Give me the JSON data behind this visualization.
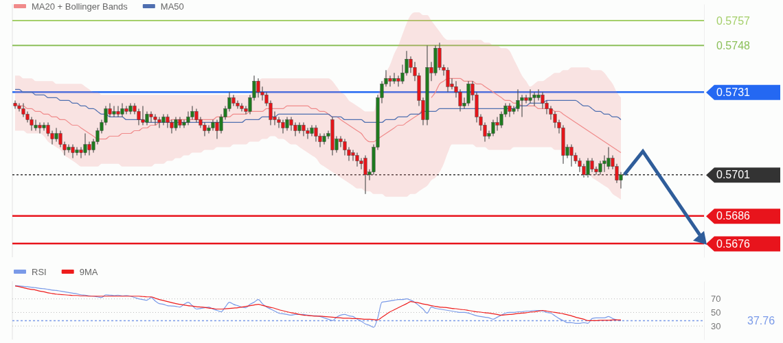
{
  "chart_data": [
    {
      "type": "candlestick",
      "legend": "top left",
      "tick_labels": "y",
      "ylim": [
        0.5671,
        0.5763
      ],
      "yticks": [
        0.5757,
        0.5748,
        0.5731,
        0.5701,
        0.5686,
        0.5676
      ],
      "categories": [
        null,
        null,
        null,
        null,
        null,
        null,
        null,
        null,
        null,
        null,
        null,
        null,
        null,
        null,
        null,
        null,
        null,
        null,
        null,
        null,
        null,
        null,
        null,
        null,
        null,
        null,
        null,
        null,
        null,
        null,
        null,
        null,
        null,
        null,
        null,
        null,
        null,
        null,
        null,
        null,
        null,
        null,
        null,
        null,
        null,
        null,
        null,
        null,
        null,
        null,
        null,
        null,
        null,
        null,
        null,
        null,
        null,
        null,
        null,
        null,
        null,
        null,
        null,
        null,
        null,
        null,
        null,
        null,
        null,
        null,
        null,
        null,
        null,
        null,
        null,
        null,
        null,
        null,
        null,
        null,
        null,
        null,
        null,
        null,
        null,
        null,
        null,
        null,
        null,
        null,
        null,
        null,
        null,
        null,
        null,
        null,
        null,
        null,
        null,
        null,
        null,
        null,
        null,
        null,
        null,
        null,
        null,
        null,
        null,
        null,
        null,
        null,
        null,
        null,
        null,
        null,
        null,
        null,
        null,
        null,
        null,
        null,
        null,
        null,
        null,
        null,
        null,
        null,
        null,
        null,
        null,
        null,
        null,
        null,
        null,
        null,
        null,
        null,
        null,
        null,
        null,
        null,
        null,
        null,
        null,
        null,
        null,
        null
      ],
      "ohlc": [
        [
          0.5727,
          0.5728,
          0.5725,
          0.5726
        ],
        [
          0.5726,
          0.5727,
          0.5724,
          0.5725
        ],
        [
          0.5725,
          0.5727,
          0.5722,
          0.5723
        ],
        [
          0.5723,
          0.5724,
          0.572,
          0.5721
        ],
        [
          0.5721,
          0.5722,
          0.5717,
          0.5719
        ],
        [
          0.5718,
          0.5721,
          0.5717,
          0.5719
        ],
        [
          0.5719,
          0.572,
          0.5716,
          0.5718
        ],
        [
          0.5718,
          0.572,
          0.5717,
          0.5719
        ],
        [
          0.5719,
          0.572,
          0.5715,
          0.5716
        ],
        [
          0.5716,
          0.5717,
          0.5712,
          0.5714
        ],
        [
          0.5714,
          0.5718,
          0.5713,
          0.5716
        ],
        [
          0.5716,
          0.5717,
          0.5711,
          0.5712
        ],
        [
          0.5712,
          0.5713,
          0.5708,
          0.571
        ],
        [
          0.571,
          0.5712,
          0.5709,
          0.5711
        ],
        [
          0.5711,
          0.5712,
          0.5707,
          0.5709
        ],
        [
          0.5709,
          0.5711,
          0.5708,
          0.571
        ],
        [
          0.571,
          0.5711,
          0.5707,
          0.5709
        ],
        [
          0.5709,
          0.5716,
          0.5708,
          0.5712
        ],
        [
          0.5712,
          0.5713,
          0.5708,
          0.571
        ],
        [
          0.571,
          0.5714,
          0.5709,
          0.5713
        ],
        [
          0.5713,
          0.5718,
          0.5712,
          0.5717
        ],
        [
          0.5717,
          0.5721,
          0.5716,
          0.572
        ],
        [
          0.572,
          0.5726,
          0.5719,
          0.5725
        ],
        [
          0.5725,
          0.5727,
          0.5722,
          0.5723
        ],
        [
          0.5723,
          0.5726,
          0.5722,
          0.5724
        ],
        [
          0.5724,
          0.5726,
          0.5722,
          0.5723
        ],
        [
          0.5723,
          0.5727,
          0.5722,
          0.5725
        ],
        [
          0.5725,
          0.5726,
          0.5723,
          0.5724
        ],
        [
          0.5724,
          0.5727,
          0.5723,
          0.5726
        ],
        [
          0.5726,
          0.5727,
          0.5723,
          0.5724
        ],
        [
          0.5724,
          0.5725,
          0.5719,
          0.5721
        ],
        [
          0.5721,
          0.5726,
          0.5719,
          0.572
        ],
        [
          0.572,
          0.5724,
          0.5719,
          0.5723
        ],
        [
          0.5723,
          0.5724,
          0.572,
          0.5722
        ],
        [
          0.5722,
          0.5723,
          0.5719,
          0.5721
        ],
        [
          0.5721,
          0.5722,
          0.5718,
          0.572
        ],
        [
          0.572,
          0.5723,
          0.5719,
          0.5722
        ],
        [
          0.5722,
          0.5723,
          0.5718,
          0.572
        ],
        [
          0.572,
          0.5721,
          0.5716,
          0.5718
        ],
        [
          0.5718,
          0.5722,
          0.5717,
          0.5721
        ],
        [
          0.5721,
          0.5722,
          0.5718,
          0.5719
        ],
        [
          0.5719,
          0.5721,
          0.5718,
          0.572
        ],
        [
          0.572,
          0.5724,
          0.5719,
          0.5722
        ],
        [
          0.5722,
          0.5726,
          0.5721,
          0.5724
        ],
        [
          0.5724,
          0.5725,
          0.572,
          0.5721
        ],
        [
          0.5721,
          0.5722,
          0.5718,
          0.5719
        ],
        [
          0.5719,
          0.572,
          0.5715,
          0.5717
        ],
        [
          0.5717,
          0.5719,
          0.5716,
          0.5718
        ],
        [
          0.5718,
          0.5721,
          0.5717,
          0.572
        ],
        [
          0.572,
          0.5721,
          0.5714,
          0.5717
        ],
        [
          0.5717,
          0.5723,
          0.5716,
          0.5722
        ],
        [
          0.5722,
          0.5726,
          0.5721,
          0.5725
        ],
        [
          0.5725,
          0.5731,
          0.5724,
          0.5729
        ],
        [
          0.5729,
          0.573,
          0.5726,
          0.5727
        ],
        [
          0.5727,
          0.5728,
          0.5725,
          0.5726
        ],
        [
          0.5726,
          0.5727,
          0.5724,
          0.5725
        ],
        [
          0.5725,
          0.5726,
          0.5723,
          0.5724
        ],
        [
          0.5724,
          0.573,
          0.5723,
          0.5729
        ],
        [
          0.5729,
          0.5737,
          0.5728,
          0.5735
        ],
        [
          0.5735,
          0.5736,
          0.5729,
          0.5731
        ],
        [
          0.5731,
          0.5733,
          0.5728,
          0.573
        ],
        [
          0.573,
          0.5731,
          0.5726,
          0.5727
        ],
        [
          0.5727,
          0.5728,
          0.5719,
          0.5721
        ],
        [
          0.5722,
          0.5724,
          0.5719,
          0.5721
        ],
        [
          0.5721,
          0.5722,
          0.5718,
          0.572
        ],
        [
          0.572,
          0.5721,
          0.5716,
          0.5718
        ],
        [
          0.5718,
          0.5722,
          0.5717,
          0.5721
        ],
        [
          0.5721,
          0.5722,
          0.5717,
          0.5719
        ],
        [
          0.5719,
          0.572,
          0.5715,
          0.5717
        ],
        [
          0.5717,
          0.572,
          0.5716,
          0.5719
        ],
        [
          0.5719,
          0.572,
          0.5715,
          0.5717
        ],
        [
          0.5717,
          0.5718,
          0.5714,
          0.5716
        ],
        [
          0.5716,
          0.5719,
          0.5715,
          0.5718
        ],
        [
          0.5718,
          0.5719,
          0.5713,
          0.5715
        ],
        [
          0.5715,
          0.5716,
          0.5711,
          0.5713
        ],
        [
          0.5713,
          0.5716,
          0.5712,
          0.5715
        ],
        [
          0.5715,
          0.5717,
          0.5714,
          0.5716
        ],
        [
          0.5721,
          0.5722,
          0.5708,
          0.571
        ],
        [
          0.571,
          0.5715,
          0.5709,
          0.5714
        ],
        [
          0.5714,
          0.5715,
          0.5711,
          0.5713
        ],
        [
          0.5713,
          0.5714,
          0.5708,
          0.571
        ],
        [
          0.571,
          0.5711,
          0.5706,
          0.5708
        ],
        [
          0.5709,
          0.571,
          0.5706,
          0.5708
        ],
        [
          0.5708,
          0.5709,
          0.5704,
          0.5706
        ],
        [
          0.5706,
          0.5707,
          0.5703,
          0.5705
        ],
        [
          0.5707,
          0.5708,
          0.5694,
          0.5701
        ],
        [
          0.5701,
          0.5703,
          0.5699,
          0.5702
        ],
        [
          0.5702,
          0.5712,
          0.5701,
          0.5711
        ],
        [
          0.5711,
          0.573,
          0.571,
          0.5729
        ],
        [
          0.5729,
          0.5735,
          0.5727,
          0.5734
        ],
        [
          0.5734,
          0.5739,
          0.5733,
          0.5736
        ],
        [
          0.5736,
          0.5737,
          0.5733,
          0.5735
        ],
        [
          0.5735,
          0.5738,
          0.5734,
          0.5736
        ],
        [
          0.5736,
          0.5737,
          0.5733,
          0.5735
        ],
        [
          0.5735,
          0.5741,
          0.5734,
          0.5738
        ],
        [
          0.5738,
          0.5746,
          0.5737,
          0.5743
        ],
        [
          0.5743,
          0.5744,
          0.5738,
          0.574
        ],
        [
          0.574,
          0.5742,
          0.5735,
          0.5737
        ],
        [
          0.5737,
          0.5738,
          0.5726,
          0.5728
        ],
        [
          0.5728,
          0.5729,
          0.5719,
          0.5721
        ],
        [
          0.5721,
          0.5748,
          0.5719,
          0.574
        ],
        [
          0.574,
          0.5742,
          0.5735,
          0.5738
        ],
        [
          0.5738,
          0.5748,
          0.5737,
          0.5747
        ],
        [
          0.5747,
          0.5749,
          0.5739,
          0.574
        ],
        [
          0.574,
          0.5741,
          0.5737,
          0.5739
        ],
        [
          0.5739,
          0.574,
          0.5731,
          0.5733
        ],
        [
          0.5734,
          0.5736,
          0.5732,
          0.5733
        ],
        [
          0.5733,
          0.5735,
          0.5729,
          0.5731
        ],
        [
          0.5731,
          0.5732,
          0.5724,
          0.5726
        ],
        [
          0.5726,
          0.5729,
          0.5725,
          0.5727
        ],
        [
          0.5727,
          0.5735,
          0.5726,
          0.5734
        ],
        [
          0.5734,
          0.5735,
          0.5728,
          0.573
        ],
        [
          0.573,
          0.5731,
          0.572,
          0.5722
        ],
        [
          0.5722,
          0.5723,
          0.5717,
          0.5719
        ],
        [
          0.5719,
          0.572,
          0.5713,
          0.5715
        ],
        [
          0.5715,
          0.5717,
          0.5714,
          0.5716
        ],
        [
          0.5716,
          0.5721,
          0.5715,
          0.572
        ],
        [
          0.572,
          0.5722,
          0.5717,
          0.5719
        ],
        [
          0.5719,
          0.5724,
          0.5718,
          0.5723
        ],
        [
          0.5723,
          0.5727,
          0.5722,
          0.5726
        ],
        [
          0.5726,
          0.5727,
          0.5722,
          0.5724
        ],
        [
          0.5724,
          0.5726,
          0.5723,
          0.5725
        ],
        [
          0.5725,
          0.5732,
          0.5724,
          0.5728
        ],
        [
          0.5728,
          0.573,
          0.5722,
          0.5729
        ],
        [
          0.5729,
          0.573,
          0.5727,
          0.5728
        ],
        [
          0.5728,
          0.5732,
          0.5727,
          0.5729
        ],
        [
          0.5729,
          0.5731,
          0.5726,
          0.573
        ],
        [
          0.5729,
          0.5732,
          0.5728,
          0.573
        ],
        [
          0.573,
          0.5731,
          0.5725,
          0.5727
        ],
        [
          0.5727,
          0.5728,
          0.5723,
          0.5725
        ],
        [
          0.5725,
          0.5726,
          0.5721,
          0.5723
        ],
        [
          0.5723,
          0.5724,
          0.5718,
          0.572
        ],
        [
          0.572,
          0.5721,
          0.5716,
          0.5718
        ],
        [
          0.5718,
          0.5719,
          0.5705,
          0.5708
        ],
        [
          0.5708,
          0.5712,
          0.5707,
          0.5711
        ],
        [
          0.5711,
          0.5712,
          0.5704,
          0.5708
        ],
        [
          0.5708,
          0.5709,
          0.5705,
          0.5706
        ],
        [
          0.5706,
          0.5707,
          0.5702,
          0.5704
        ],
        [
          0.5704,
          0.5705,
          0.57,
          0.5701
        ],
        [
          0.5701,
          0.5707,
          0.57,
          0.5706
        ],
        [
          0.5706,
          0.5707,
          0.5702,
          0.5703
        ],
        [
          0.5703,
          0.5704,
          0.5701,
          0.5702
        ],
        [
          0.5702,
          0.5706,
          0.5701,
          0.5705
        ],
        [
          0.5705,
          0.5708,
          0.5702,
          0.5706
        ],
        [
          0.5704,
          0.5711,
          0.5703,
          0.5707
        ],
        [
          0.5707,
          0.5708,
          0.5703,
          0.5704
        ],
        [
          0.5704,
          0.5705,
          0.5698,
          0.5699
        ],
        [
          0.5699,
          0.5702,
          0.5696,
          0.5701
        ]
      ],
      "series": [
        {
          "name": "MA20 + Bollinger Bands",
          "type": "line",
          "color": "#f08a8a",
          "values": [
            0.5727,
            0.5726,
            0.5726,
            0.5725,
            0.5725,
            0.5724,
            0.5724,
            0.5723,
            0.5723,
            0.5722,
            0.5722,
            0.5721,
            0.5721,
            0.572,
            0.5719,
            0.5719,
            0.5718,
            0.5717,
            0.5716,
            0.5715,
            0.5714,
            0.5714,
            0.5714,
            0.5715,
            0.5715,
            0.5715,
            0.5716,
            0.5716,
            0.5716,
            0.5717,
            0.5717,
            0.5718,
            0.5718,
            0.5719,
            0.5719,
            0.572,
            0.572,
            0.572,
            0.5721,
            0.5721,
            0.5721,
            0.5721,
            0.5721,
            0.5721,
            0.5721,
            0.5721,
            0.5721,
            0.5721,
            0.5721,
            0.5722,
            0.5722,
            0.5722,
            0.5722,
            0.5723,
            0.5723,
            0.5723,
            0.5723,
            0.5724,
            0.5724,
            0.5724,
            0.5724,
            0.5725,
            0.5725,
            0.5725,
            0.5725,
            0.5725,
            0.5726,
            0.5726,
            0.5726,
            0.5726,
            0.5726,
            0.5726,
            0.5725,
            0.5725,
            0.5724,
            0.5724,
            0.5723,
            0.5722,
            0.5722,
            0.5721,
            0.572,
            0.5719,
            0.5718,
            0.5717,
            0.5716,
            0.5714,
            0.5713,
            0.5713,
            0.5714,
            0.5715,
            0.5716,
            0.5717,
            0.5718,
            0.5719,
            0.5719,
            0.572,
            0.5721,
            0.5722,
            0.5723,
            0.5725,
            null,
            0.5729,
            0.5731,
            0.5734,
            0.5735,
            0.5736,
            0.5736,
            0.5736,
            0.5736,
            0.5735,
            0.5735,
            0.5735,
            0.5734,
            0.5734,
            0.5733,
            0.5732,
            0.5731,
            0.573,
            0.5729,
            0.5728,
            0.5728,
            0.5727,
            0.5727,
            0.5726,
            0.5726,
            0.5726,
            0.5726,
            0.5725,
            0.5725,
            0.5725,
            0.5725,
            0.5724,
            0.5724,
            0.5723,
            0.5722,
            0.5721,
            0.572,
            0.5719,
            0.5718,
            0.5717,
            0.5716,
            0.5715,
            0.5714,
            0.5713,
            0.5712,
            0.5711,
            0.571,
            0.5709
          ],
          "upper": [
            0.5737,
            0.5737,
            0.5736,
            0.5736,
            0.5736,
            0.5735,
            0.5735,
            0.5735,
            0.5735,
            0.5735,
            0.5734,
            0.5734,
            0.5734,
            0.5734,
            0.5734,
            0.5734,
            0.5734,
            0.5733,
            0.5732,
            0.5731,
            0.5731,
            0.573,
            0.573,
            0.573,
            0.573,
            0.573,
            0.573,
            0.573,
            0.573,
            0.573,
            0.573,
            0.573,
            0.573,
            0.573,
            0.573,
            0.573,
            0.573,
            0.573,
            0.573,
            0.573,
            0.573,
            0.573,
            0.573,
            0.573,
            0.573,
            0.573,
            0.573,
            0.573,
            0.573,
            0.573,
            0.573,
            0.573,
            0.573,
            0.573,
            0.573,
            0.573,
            0.573,
            0.573,
            0.5733,
            0.5735,
            0.5736,
            0.5736,
            0.5736,
            0.5736,
            0.5736,
            0.5736,
            0.5736,
            0.5736,
            0.5736,
            0.5736,
            0.5736,
            0.5736,
            0.5736,
            0.5736,
            0.5736,
            0.5736,
            0.5736,
            0.5735,
            0.5733,
            0.5731,
            0.573,
            0.5728,
            0.5727,
            0.5726,
            0.5725,
            0.5724,
            0.5724,
            0.5724,
            0.573,
            0.5734,
            0.5738,
            0.5741,
            0.5745,
            0.5748,
            0.5752,
            0.5756,
            0.5759,
            0.576,
            0.576,
            0.5759,
            0.5759,
            0.5757,
            0.5755,
            0.5753,
            0.5751,
            0.575,
            0.575,
            0.575,
            0.575,
            0.575,
            0.575,
            0.575,
            0.575,
            0.575,
            0.5749,
            0.5749,
            0.5748,
            0.5748,
            0.5747,
            0.5747,
            0.5746,
            0.5743,
            0.574,
            0.5737,
            0.5735,
            0.5733,
            0.5734,
            0.5735,
            0.5735,
            0.5736,
            0.5737,
            0.5738,
            0.5738,
            0.5739,
            0.5739,
            0.574,
            0.574,
            0.574,
            0.574,
            0.574,
            0.5739,
            0.5739,
            0.5739,
            0.5738,
            0.5736,
            0.5734,
            0.5731,
            0.5729
          ],
          "lower": [
            0.5717,
            0.5717,
            0.5717,
            0.5716,
            0.5716,
            0.5716,
            0.5716,
            0.5715,
            0.5713,
            0.5712,
            0.5711,
            0.571,
            0.5708,
            0.5707,
            0.5706,
            0.5705,
            0.5704,
            0.5704,
            0.5704,
            0.5704,
            0.5704,
            0.5705,
            0.5705,
            0.5705,
            0.5705,
            0.5705,
            0.5704,
            0.5704,
            0.5704,
            0.5704,
            0.5704,
            0.5704,
            0.5704,
            0.5704,
            0.5705,
            0.5705,
            0.5705,
            0.5706,
            0.5706,
            0.5707,
            0.5707,
            0.5708,
            0.5708,
            0.5709,
            0.5709,
            0.5709,
            0.571,
            0.571,
            0.571,
            0.5711,
            0.5711,
            0.5711,
            0.5711,
            0.5712,
            0.5712,
            0.5712,
            0.5712,
            0.5713,
            0.5713,
            0.5713,
            0.5714,
            0.5714,
            0.5715,
            0.5715,
            0.5714,
            0.5714,
            0.5713,
            0.5712,
            0.5712,
            0.5711,
            0.571,
            0.5709,
            0.5708,
            0.5707,
            0.5705,
            0.5704,
            0.5703,
            0.5702,
            0.5701,
            0.57,
            0.5699,
            0.5698,
            0.5697,
            0.5696,
            0.5696,
            0.5695,
            0.5695,
            0.5694,
            0.5694,
            0.5694,
            0.5693,
            0.5693,
            0.5693,
            0.5693,
            0.5693,
            0.5693,
            0.5694,
            0.5694,
            0.5695,
            0.5696,
            0.5697,
            0.5699,
            0.57,
            0.5702,
            0.5705,
            0.5709,
            0.5712,
            0.5712,
            0.5712,
            0.5712,
            0.5712,
            0.5712,
            0.5711,
            0.5711,
            0.5711,
            0.571,
            0.571,
            0.571,
            0.571,
            0.571,
            0.571,
            0.5711,
            0.5711,
            0.5711,
            0.5711,
            0.5711,
            0.5711,
            0.5711,
            0.5711,
            0.5711,
            0.5711,
            0.571,
            0.571,
            0.571,
            0.5709,
            0.5708,
            0.5706,
            0.5705,
            0.5703,
            0.5702,
            0.57,
            0.5699,
            0.5698,
            0.5697,
            0.5696,
            0.5694,
            0.5693,
            0.5692
          ]
        },
        {
          "name": "MA50",
          "type": "line",
          "color": "#4f6fb0",
          "values": [
            0.5732,
            0.5732,
            0.5731,
            0.5731,
            0.5731,
            0.573,
            0.573,
            0.573,
            0.5729,
            0.5729,
            0.5729,
            0.5728,
            0.5728,
            0.5728,
            0.5727,
            0.5727,
            0.5726,
            0.5726,
            0.5725,
            0.5725,
            0.5724,
            0.5723,
            0.5723,
            0.5722,
            0.5722,
            0.5722,
            0.5722,
            0.5721,
            0.5721,
            0.5721,
            0.5721,
            0.5721,
            0.572,
            0.572,
            0.572,
            0.572,
            0.572,
            0.572,
            0.572,
            0.572,
            0.572,
            0.572,
            0.572,
            0.572,
            0.572,
            0.572,
            0.572,
            0.572,
            0.572,
            0.572,
            0.572,
            0.572,
            0.572,
            0.572,
            0.572,
            0.572,
            0.5721,
            0.5721,
            0.5721,
            0.5721,
            0.5722,
            0.5722,
            0.5722,
            0.5722,
            0.5723,
            0.5723,
            0.5723,
            0.5723,
            0.5723,
            0.5723,
            0.5723,
            0.5723,
            0.5723,
            0.5723,
            0.5723,
            0.5723,
            0.5723,
            0.5722,
            0.5722,
            0.5722,
            0.5721,
            0.5721,
            0.5721,
            0.5721,
            0.5721,
            0.572,
            0.572,
            0.572,
            0.572,
            0.572,
            0.5721,
            0.5721,
            0.5721,
            0.5722,
            0.5722,
            0.5722,
            0.5723,
            0.5723,
            0.5723,
            0.5724,
            0.5724,
            0.5724,
            0.5724,
            0.5725,
            0.5725,
            0.5725,
            0.5725,
            0.5725,
            0.5725,
            0.5725,
            0.5725,
            0.5725,
            0.5725,
            0.5725,
            0.5725,
            0.5725,
            0.5725,
            0.5725,
            0.5725,
            0.5725,
            0.5725,
            0.5725,
            0.5726,
            0.5726,
            0.5726,
            0.5727,
            0.5727,
            0.5727,
            0.5727,
            0.5728,
            0.5728,
            0.5728,
            0.5728,
            0.5728,
            0.5728,
            0.5728,
            0.5728,
            0.5727,
            0.5726,
            0.5726,
            0.5725,
            0.5724,
            0.5724,
            0.5723,
            0.5723,
            0.5722,
            0.5722,
            0.5721
          ]
        }
      ],
      "ref_lines": [
        {
          "axis": "y",
          "value": 0.5757,
          "color": "#a4cf6a",
          "line_style": "solid"
        },
        {
          "axis": "y",
          "value": 0.5748,
          "color": "#8cc05a",
          "line_style": "solid"
        },
        {
          "axis": "y",
          "value": 0.5731,
          "color": "#2468f2",
          "line_style": "solid"
        },
        {
          "axis": "y",
          "value": 0.5701,
          "color": "#333333",
          "line_style": "dotted"
        },
        {
          "axis": "y",
          "value": 0.5686,
          "color": "#e8141c",
          "line_style": "solid"
        },
        {
          "axis": "y",
          "value": 0.5676,
          "color": "#e8141c",
          "line_style": "solid"
        }
      ]
    },
    {
      "type": "line",
      "legend": "top left",
      "tick_labels": "y",
      "grid": "y",
      "categories": [
        null,
        null,
        null,
        null,
        null,
        null,
        null,
        null,
        null,
        null,
        null,
        null,
        null,
        null,
        null,
        null,
        null,
        null,
        null,
        null,
        null,
        null,
        null,
        null,
        null,
        null,
        null,
        null,
        null,
        null,
        null,
        null,
        null,
        null,
        null,
        null,
        null,
        null,
        null,
        null,
        null,
        null,
        null,
        null,
        null,
        null,
        null,
        null,
        null,
        null,
        null,
        null,
        null,
        null,
        null,
        null,
        null,
        null,
        null,
        null,
        null,
        null,
        null,
        null,
        null,
        null,
        null,
        null,
        null,
        null,
        null,
        null,
        null,
        null,
        null,
        null,
        null,
        null,
        null,
        null,
        null,
        null,
        null,
        null,
        null,
        null,
        null,
        null,
        null,
        null,
        null,
        null,
        null,
        null,
        null,
        null,
        null,
        null,
        null,
        null,
        null,
        null,
        null,
        null,
        null,
        null,
        null,
        null,
        null,
        null,
        null,
        null,
        null,
        null,
        null,
        null,
        null,
        null,
        null,
        null,
        null,
        null,
        null,
        null,
        null,
        null,
        null,
        null,
        null,
        null,
        null,
        null,
        null,
        null,
        null,
        null,
        null,
        null,
        null,
        null,
        null,
        null,
        null,
        null,
        null,
        null,
        null,
        null
      ],
      "ylim": [
        10,
        96
      ],
      "yticks": [
        30,
        50,
        70
      ],
      "series": [
        {
          "name": "RSI",
          "color": "#7a9ae8",
          "values": [
            89.5,
            89,
            88.5,
            88,
            87,
            86.5,
            85.5,
            85,
            84,
            83,
            82.5,
            81.5,
            80.5,
            79.5,
            78.5,
            77.5,
            76,
            75.5,
            74.5,
            74,
            73,
            72,
            76,
            75.5,
            75,
            75.5,
            74.5,
            75,
            74,
            72,
            70,
            69,
            68,
            72,
            67,
            63,
            62,
            60,
            59.5,
            59,
            58,
            62,
            65,
            60,
            55,
            56,
            57,
            58,
            55,
            53,
            51,
            58,
            65,
            62,
            60,
            58,
            57,
            62,
            65,
            69,
            63,
            58,
            55,
            52,
            49,
            48,
            47,
            46,
            47,
            47,
            47,
            46,
            45,
            45,
            44,
            42,
            40,
            38,
            43,
            46,
            47,
            45,
            44,
            40,
            37,
            33,
            31,
            28,
            42,
            65,
            66,
            67,
            68,
            69,
            69,
            70,
            68,
            65,
            60,
            55,
            49,
            58,
            56,
            55,
            54,
            53,
            52,
            51,
            50,
            50,
            49,
            47,
            45,
            44,
            43,
            42,
            40,
            43,
            46,
            49,
            50,
            50,
            51,
            51,
            52,
            52,
            53,
            53,
            52,
            50,
            49,
            45,
            41,
            38,
            35,
            35,
            34,
            34,
            35,
            34,
            41,
            42,
            42,
            42,
            44,
            41,
            39,
            37.76
          ]
        },
        {
          "name": "9MA",
          "color": "#ee1c1c",
          "values": [
            89,
            88,
            86.5,
            85,
            84,
            83,
            81.5,
            80.5,
            79,
            78,
            77,
            76.5,
            76,
            75.5,
            75,
            75,
            74.5,
            74.5,
            74,
            74,
            74,
            74,
            74,
            74,
            74,
            74,
            74,
            74,
            74,
            74,
            74,
            73.5,
            73,
            73,
            71,
            69,
            67.5,
            66,
            64.5,
            63,
            62,
            61,
            60,
            59.5,
            58.5,
            58,
            57.5,
            56.5,
            56,
            55,
            55,
            55.5,
            56,
            56.5,
            57,
            58,
            59,
            60,
            61,
            62,
            60.5,
            59,
            57.5,
            56,
            54,
            52.5,
            51,
            49.5,
            48.5,
            47,
            46,
            45.5,
            45,
            44.5,
            44.5,
            44,
            43.5,
            43,
            42.5,
            42,
            41.5,
            41.5,
            41,
            41,
            40.5,
            40,
            40,
            39.5,
            39,
            43,
            47,
            51,
            54,
            57,
            60,
            63,
            66,
            65,
            64,
            62.5,
            61.5,
            60,
            59,
            58,
            57.5,
            57,
            56,
            55.5,
            54.5,
            54,
            53,
            52,
            51,
            50.5,
            49.5,
            49,
            48,
            47,
            46,
            46.5,
            47,
            47.5,
            48.5,
            49,
            49.5,
            50.5,
            51,
            52,
            53,
            52,
            51,
            50,
            49,
            48,
            46.5,
            45,
            43,
            41.5,
            40,
            38,
            38,
            38,
            38.5,
            38.5,
            38.5,
            39,
            39,
            39
          ]
        }
      ],
      "ref_lines": [
        {
          "axis": "y",
          "value": 37.76,
          "label": "37.76",
          "color": "#7a9ae8",
          "line_style": "dotted"
        }
      ]
    }
  ]
}
